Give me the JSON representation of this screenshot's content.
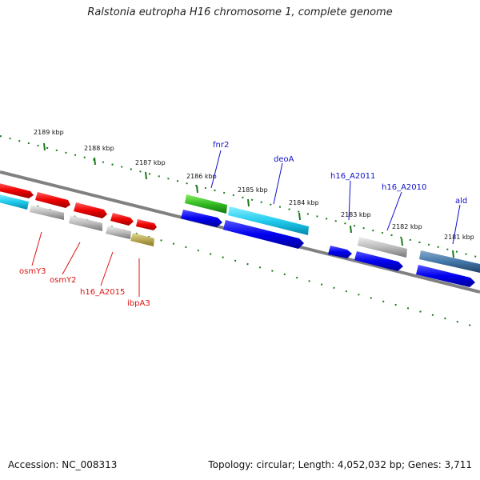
{
  "title": "Ralstonia eutropha H16 chromosome 1, complete genome",
  "footer": {
    "accession": "Accession: NC_008313",
    "summary": "Topology: circular; Length: 4,052,032 bp; Genes: 3,711"
  },
  "scale": {
    "unit": "kbp",
    "ticks": [
      "2189 kbp",
      "2188 kbp",
      "2187 kbp",
      "2186 kbp",
      "2185 kbp",
      "2184 kbp",
      "2183 kbp",
      "2182 kbp",
      "2181 kbp"
    ]
  },
  "colors": {
    "backbone": "#808080",
    "tick": "#1a7a1a",
    "top_label": "#1010cc",
    "bottom_label": "#dd1111"
  },
  "gene_labels_top": [
    "fnr2",
    "deoA",
    "h16_A2011",
    "h16_A2010",
    "ald"
  ],
  "gene_labels_bottom": [
    "osmY3",
    "osmY2",
    "h16_A2015",
    "ibpA3"
  ]
}
